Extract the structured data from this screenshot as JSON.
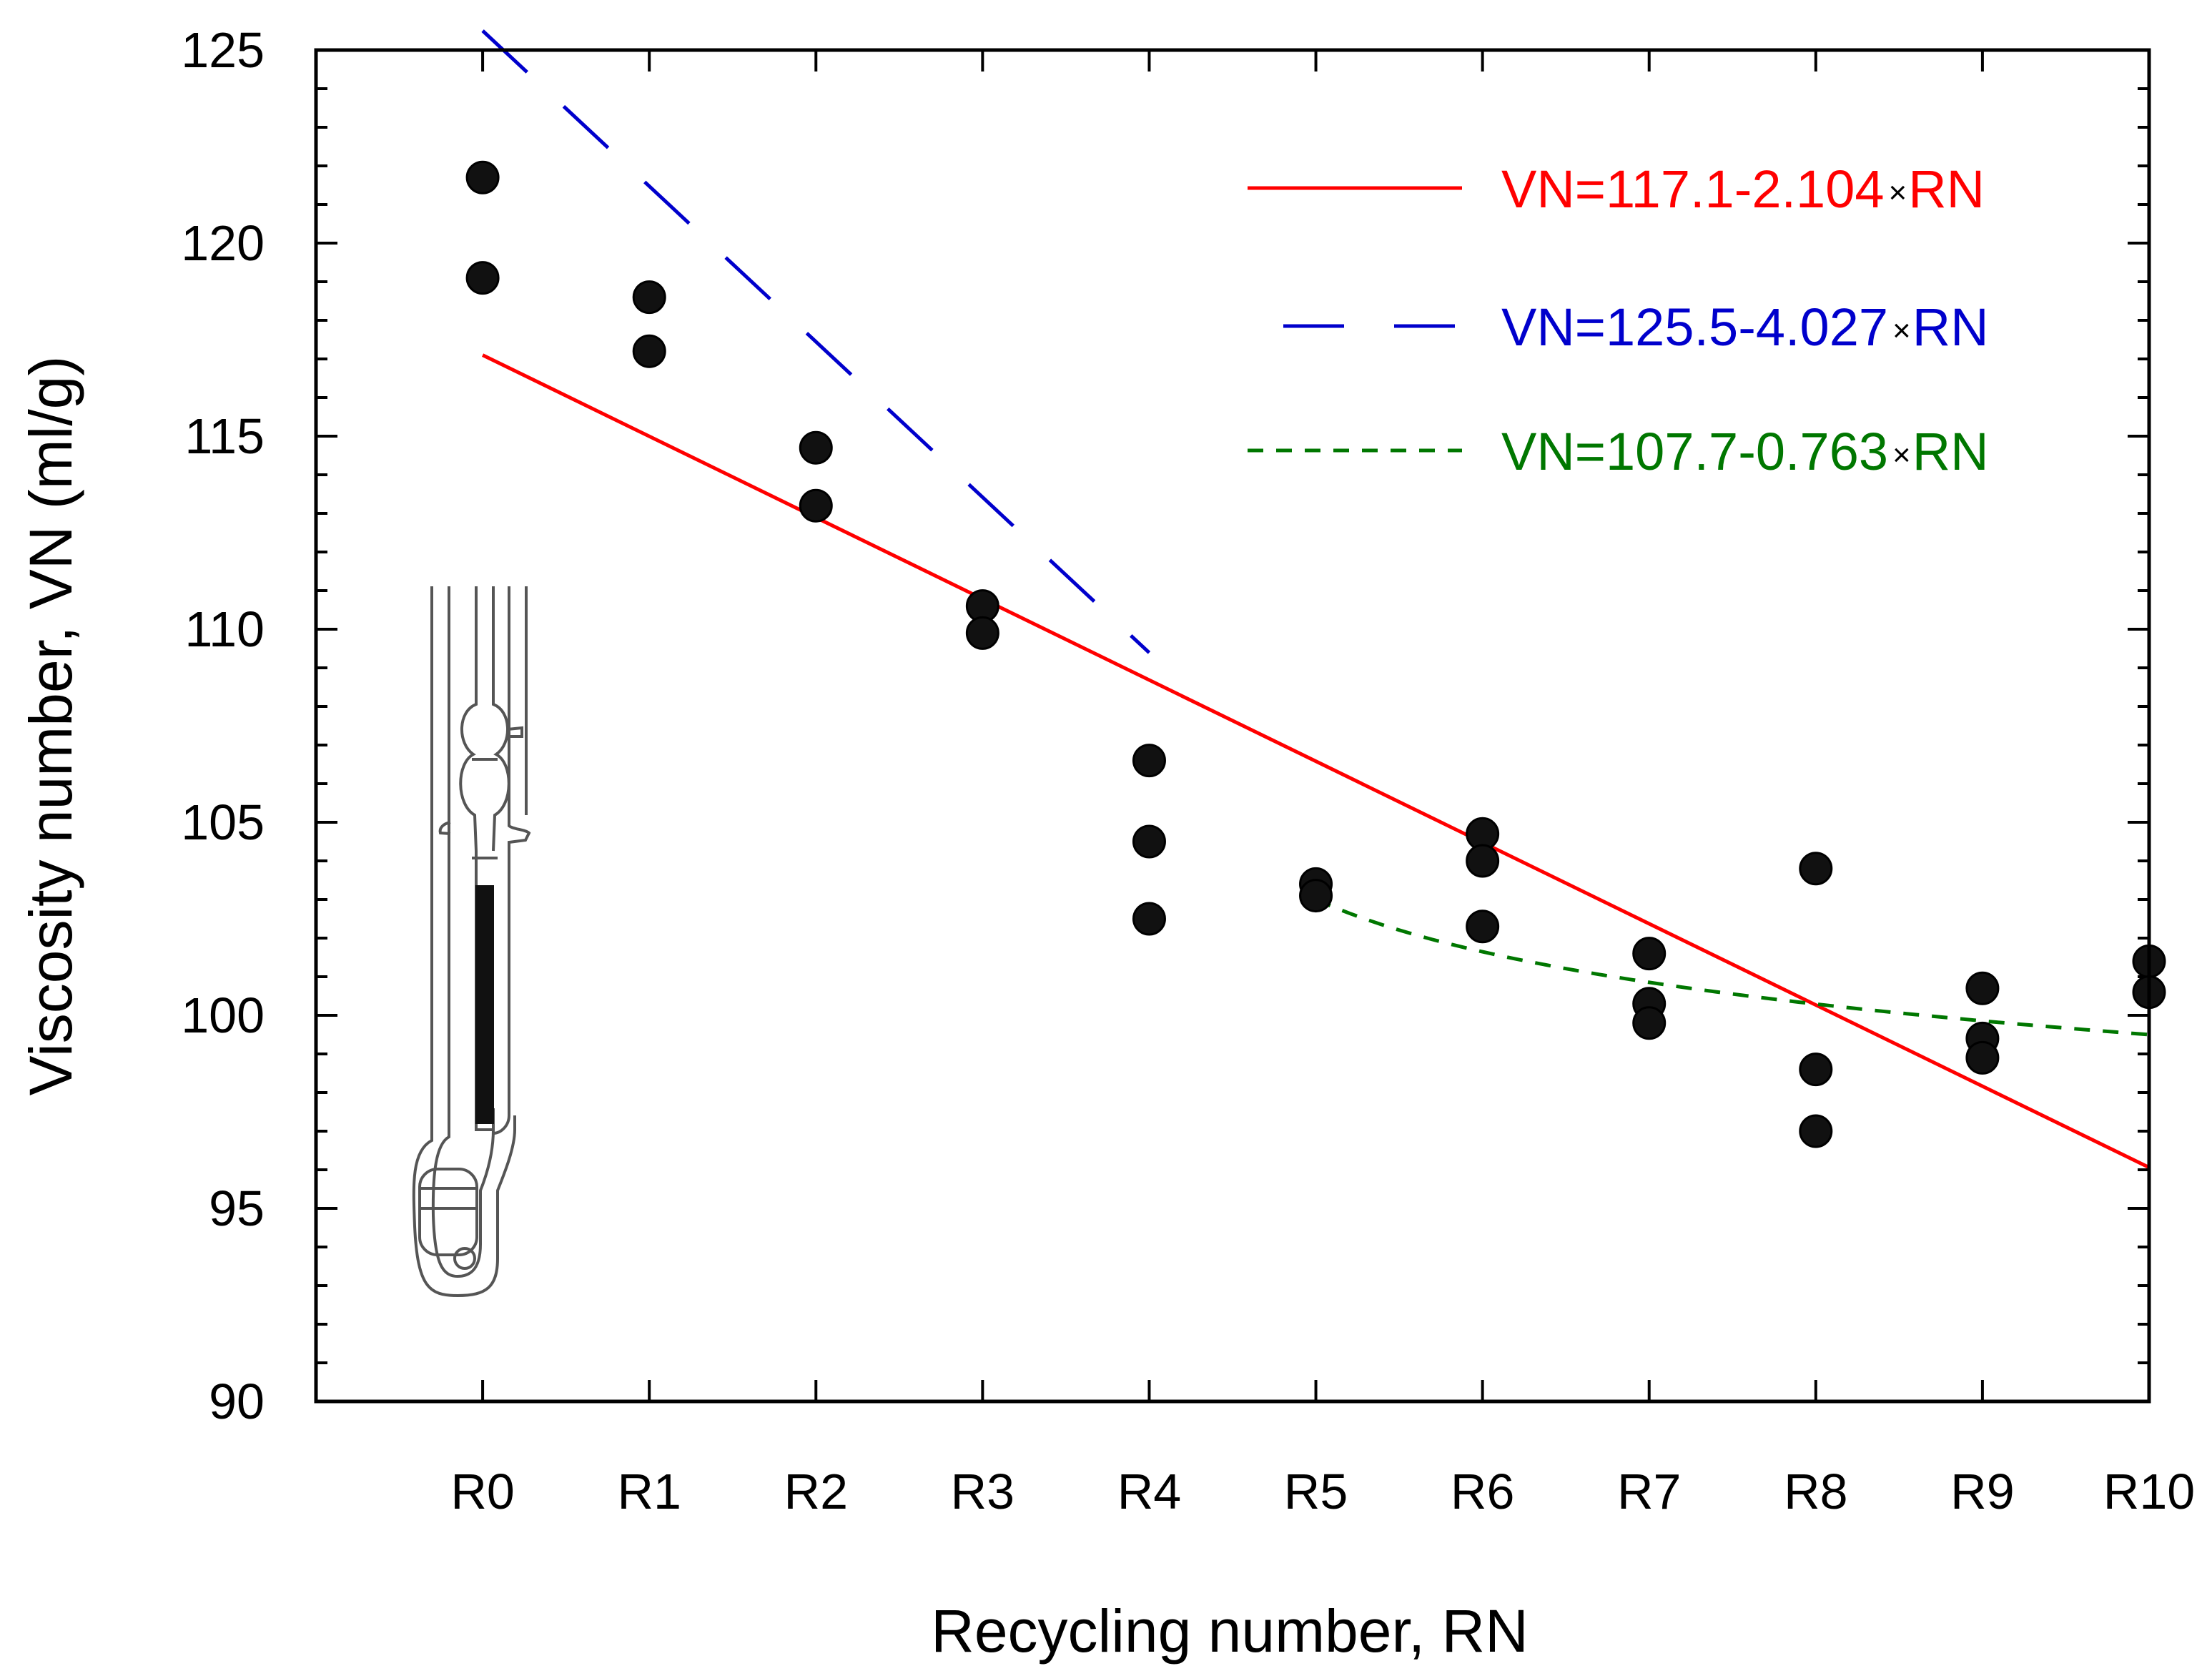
{
  "chart_data": {
    "type": "scatter",
    "title": "",
    "xlabel": "Recycling number, RN",
    "ylabel": "Viscosity number, VN  (ml/g)",
    "categories": [
      "R0",
      "R1",
      "R2",
      "R3",
      "R4",
      "R5",
      "R6",
      "R7",
      "R8",
      "R9",
      "R10"
    ],
    "x_range": [
      -1,
      10
    ],
    "ylim": [
      90,
      125
    ],
    "y_ticks": [
      90,
      95,
      100,
      105,
      110,
      115,
      120,
      125
    ],
    "y_minor_step": 1,
    "points": [
      {
        "x": 0,
        "y": 121.7
      },
      {
        "x": 0,
        "y": 119.1
      },
      {
        "x": 1,
        "y": 118.6
      },
      {
        "x": 1,
        "y": 117.2
      },
      {
        "x": 2,
        "y": 114.7
      },
      {
        "x": 2,
        "y": 113.2
      },
      {
        "x": 3,
        "y": 110.6
      },
      {
        "x": 3,
        "y": 109.9
      },
      {
        "x": 4,
        "y": 106.6
      },
      {
        "x": 4,
        "y": 104.5
      },
      {
        "x": 4,
        "y": 102.5
      },
      {
        "x": 5,
        "y": 103.4
      },
      {
        "x": 5,
        "y": 103.1
      },
      {
        "x": 6,
        "y": 104.7
      },
      {
        "x": 6,
        "y": 104.0
      },
      {
        "x": 6,
        "y": 102.3
      },
      {
        "x": 7,
        "y": 101.6
      },
      {
        "x": 7,
        "y": 100.3
      },
      {
        "x": 7,
        "y": 99.8
      },
      {
        "x": 8,
        "y": 103.8
      },
      {
        "x": 8,
        "y": 98.6
      },
      {
        "x": 8,
        "y": 97.0
      },
      {
        "x": 9,
        "y": 100.7
      },
      {
        "x": 9,
        "y": 99.4
      },
      {
        "x": 9,
        "y": 98.9
      },
      {
        "x": 10,
        "y": 101.4
      },
      {
        "x": 10,
        "y": 100.6
      }
    ],
    "fits": [
      {
        "name": "VN=117.1-2.104",
        "suffix": "RN",
        "intercept": 117.1,
        "slope": -2.104,
        "x_range": [
          0,
          10
        ],
        "color": "#ff0000",
        "style": "solid"
      },
      {
        "name": "VN=125.5-4.027",
        "suffix": "RN",
        "intercept": 125.5,
        "slope": -4.027,
        "x_range": [
          0,
          4
        ],
        "color": "#0000cc",
        "style": "long-dash"
      },
      {
        "name": "VN=107.7-0.763",
        "suffix": "RN",
        "intercept": 107.7,
        "slope": -0.763,
        "x_range": [
          5,
          10
        ],
        "color": "#007700",
        "style": "short-dash",
        "model": "logarithmic"
      }
    ],
    "legend_multiplier": "×",
    "legend_position": "top-right"
  }
}
